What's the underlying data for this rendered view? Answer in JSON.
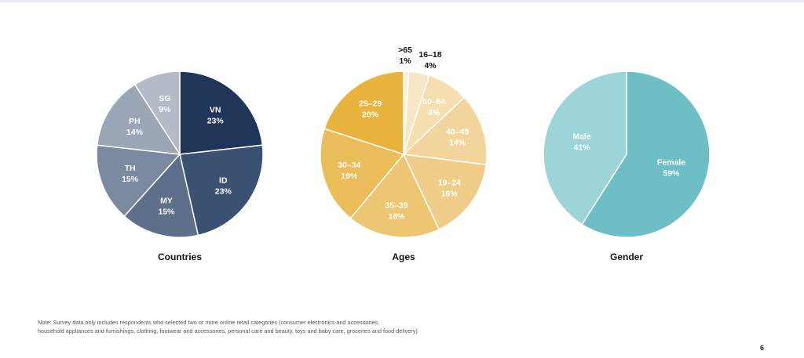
{
  "chart_data": [
    {
      "type": "pie",
      "title": "Countries",
      "slices": [
        {
          "label": "VN",
          "value": 23,
          "value_text": "23%",
          "color": "#203658",
          "text_color": "#ffffff"
        },
        {
          "label": "ID",
          "value": 23,
          "value_text": "23%",
          "color": "#3b5172",
          "text_color": "#ffffff"
        },
        {
          "label": "MY",
          "value": 15,
          "value_text": "15%",
          "color": "#5e6f89",
          "text_color": "#ffffff"
        },
        {
          "label": "TH",
          "value": 15,
          "value_text": "15%",
          "color": "#7b89a0",
          "text_color": "#ffffff"
        },
        {
          "label": "PH",
          "value": 14,
          "value_text": "14%",
          "color": "#9aa5b6",
          "text_color": "#ffffff"
        },
        {
          "label": "SG",
          "value": 9,
          "value_text": "9%",
          "color": "#b3bbc9",
          "text_color": "#ffffff"
        }
      ]
    },
    {
      "type": "pie",
      "title": "Ages",
      "slices": [
        {
          "label": ">65",
          "value": 1,
          "value_text": "1%",
          "color": "#faeedb",
          "text_color": "#111111",
          "outside": true
        },
        {
          "label": "16–18",
          "value": 4,
          "value_text": "4%",
          "color": "#f8e7c6",
          "text_color": "#111111",
          "outside": true
        },
        {
          "label": "50–64",
          "value": 8,
          "value_text": "8%",
          "color": "#f5dfb0",
          "text_color": "#ffffff"
        },
        {
          "label": "40–49",
          "value": 14,
          "value_text": "14%",
          "color": "#f1d59c",
          "text_color": "#ffffff"
        },
        {
          "label": "19–24",
          "value": 16,
          "value_text": "16%",
          "color": "#efcd88",
          "text_color": "#ffffff"
        },
        {
          "label": "35–39",
          "value": 18,
          "value_text": "18%",
          "color": "#edc673",
          "text_color": "#ffffff"
        },
        {
          "label": "30–34",
          "value": 19,
          "value_text": "19%",
          "color": "#ebbc5a",
          "text_color": "#ffffff"
        },
        {
          "label": "25–29",
          "value": 20,
          "value_text": "20%",
          "color": "#e8b43d",
          "text_color": "#ffffff"
        }
      ]
    },
    {
      "type": "pie",
      "title": "Gender",
      "slices": [
        {
          "label": "Female",
          "value": 59,
          "value_text": "59%",
          "color": "#6ebfc5",
          "text_color": "#ffffff"
        },
        {
          "label": "Male",
          "value": 41,
          "value_text": "41%",
          "color": "#9dd4d9",
          "text_color": "#ffffff"
        }
      ]
    }
  ],
  "note": {
    "line1": "Note: Survey data only includes respondents who selected two or more online retail categories (consumer electronics and accessories,",
    "line2": "household appliances and furnishings, clothing, footwear and accessories, personal care and beauty, toys and baby care, groceries and food delivery)"
  },
  "page_number": "6"
}
